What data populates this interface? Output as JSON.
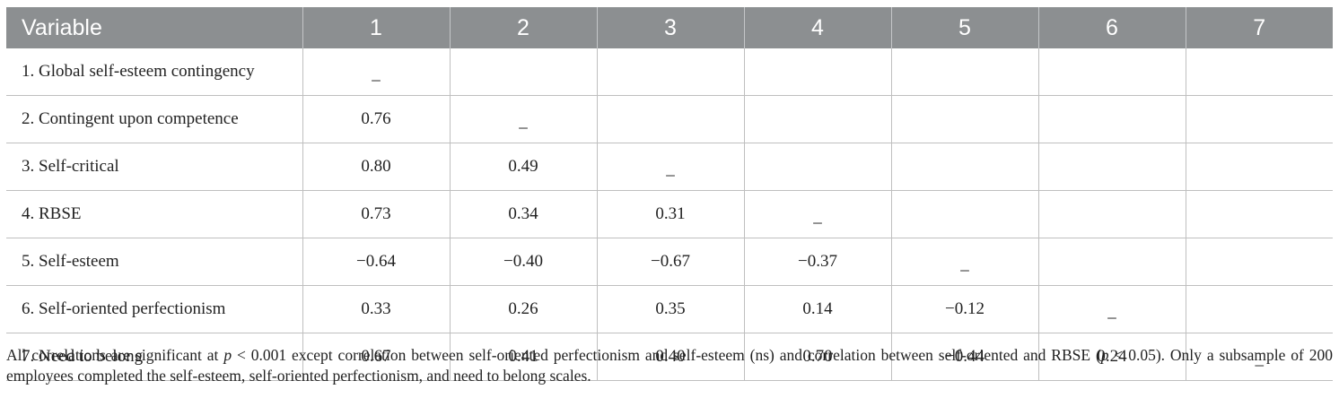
{
  "table": {
    "headers": [
      "Variable",
      "1",
      "2",
      "3",
      "4",
      "5",
      "6",
      "7"
    ],
    "rows": [
      {
        "label": "1. Global self-esteem contingency",
        "cells": [
          "_",
          "",
          "",
          "",
          "",
          "",
          ""
        ]
      },
      {
        "label": "2. Contingent upon competence",
        "cells": [
          "0.76",
          "_",
          "",
          "",
          "",
          "",
          ""
        ]
      },
      {
        "label": "3. Self-critical",
        "cells": [
          "0.80",
          "0.49",
          "_",
          "",
          "",
          "",
          ""
        ]
      },
      {
        "label": "4. RBSE",
        "cells": [
          "0.73",
          "0.34",
          "0.31",
          "_",
          "",
          "",
          ""
        ]
      },
      {
        "label": "5. Self-esteem",
        "cells": [
          "−0.64",
          "−0.40",
          "−0.67",
          "−0.37",
          "_",
          "",
          ""
        ]
      },
      {
        "label": "6. Self-oriented perfectionism",
        "cells": [
          "0.33",
          "0.26",
          "0.35",
          "0.14",
          "−0.12",
          "_",
          ""
        ]
      },
      {
        "label": "7. Need to belong",
        "cells": [
          "0.67",
          "0.41",
          "0.40",
          "0.70",
          "−0.44",
          "0.24",
          "_"
        ]
      }
    ]
  },
  "footnote": {
    "part1": "All correlations are significant at ",
    "p1": "p",
    "part2": " < 0.001 except correlation between self-oriented perfectionism and self-esteem (ns) and correlation between self-oriented and RBSE (",
    "p2": "p",
    "part3": " < 0.05). Only a subsample of 200 employees completed the self-esteem, self-oriented perfectionism, and need to belong scales."
  },
  "colors": {
    "header_bg": "#8c8f91",
    "header_text": "#ffffff",
    "grid": "#bfbfbf",
    "body_text": "#222222"
  }
}
